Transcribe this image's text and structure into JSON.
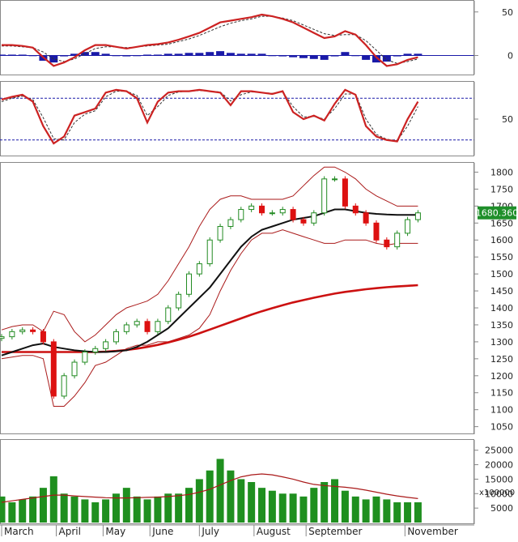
{
  "chart_data": [
    {
      "type": "line",
      "panel": "macd",
      "y_ticks": [
        "50",
        "0"
      ],
      "y_tick_values": [
        50,
        0
      ],
      "ylim": [
        -20,
        60
      ],
      "colors": {
        "line": "#cc2222",
        "signal": "#333333",
        "hist": "#1a1aa8"
      },
      "x": [
        0,
        4,
        8,
        12,
        16,
        20,
        24,
        28,
        32,
        36,
        40,
        44,
        48,
        52,
        56,
        60,
        64,
        68,
        72,
        76,
        80,
        84,
        88,
        92,
        96,
        100,
        104,
        108,
        112,
        116,
        120,
        124,
        128,
        132,
        136,
        140,
        144,
        148,
        152,
        156,
        160
      ],
      "macd": [
        12,
        12,
        11,
        9,
        -2,
        -12,
        -8,
        -2,
        6,
        12,
        12,
        10,
        8,
        10,
        12,
        13,
        15,
        18,
        22,
        26,
        32,
        38,
        40,
        42,
        44,
        47,
        45,
        42,
        38,
        32,
        26,
        20,
        22,
        28,
        24,
        12,
        -2,
        -12,
        -10,
        -5,
        -2
      ],
      "signal": [
        11,
        11,
        10,
        9,
        4,
        -4,
        -7,
        -4,
        2,
        8,
        10,
        10,
        9,
        10,
        11,
        12,
        13,
        16,
        19,
        23,
        28,
        33,
        37,
        40,
        42,
        45,
        45,
        43,
        40,
        35,
        30,
        25,
        23,
        24,
        24,
        17,
        6,
        -5,
        -9,
        -7,
        -4
      ],
      "hist": [
        1,
        1,
        1,
        0,
        -6,
        -8,
        -1,
        2,
        4,
        4,
        2,
        0,
        -1,
        0,
        1,
        1,
        2,
        2,
        3,
        3,
        4,
        5,
        3,
        2,
        2,
        2,
        0,
        -1,
        -2,
        -3,
        -4,
        -5,
        -1,
        4,
        0,
        -5,
        -8,
        -7,
        -1,
        2,
        2
      ]
    },
    {
      "type": "line",
      "panel": "stochastic",
      "y_ticks": [
        "50"
      ],
      "y_tick_values": [
        50
      ],
      "reference_levels": [
        80,
        20
      ],
      "ylim": [
        0,
        100
      ],
      "colors": {
        "k": "#cc2222",
        "d": "#333333",
        "ref": "#1a1aa8"
      },
      "x": [
        0,
        4,
        8,
        12,
        16,
        20,
        24,
        28,
        32,
        36,
        40,
        44,
        48,
        52,
        56,
        60,
        64,
        68,
        72,
        76,
        80,
        84,
        88,
        92,
        96,
        100,
        104,
        108,
        112,
        116,
        120,
        124,
        128,
        132,
        136,
        140,
        144,
        148,
        152,
        156,
        160
      ],
      "k": [
        78,
        82,
        85,
        75,
        40,
        15,
        25,
        55,
        60,
        65,
        88,
        92,
        90,
        80,
        45,
        75,
        88,
        90,
        90,
        92,
        90,
        88,
        70,
        90,
        90,
        88,
        86,
        90,
        60,
        50,
        55,
        48,
        72,
        92,
        85,
        40,
        25,
        20,
        18,
        50,
        75
      ],
      "d": [
        75,
        80,
        83,
        78,
        52,
        22,
        20,
        45,
        57,
        62,
        82,
        90,
        90,
        84,
        55,
        68,
        84,
        89,
        90,
        91,
        90,
        89,
        76,
        85,
        89,
        88,
        87,
        89,
        68,
        53,
        54,
        50,
        65,
        86,
        86,
        50,
        28,
        21,
        19,
        40,
        68
      ]
    },
    {
      "type": "candlestick",
      "panel": "price",
      "price_label": "1680.360",
      "y_ticks": [
        "1800",
        "1750",
        "1700",
        "1650",
        "1600",
        "1550",
        "1500",
        "1450",
        "1400",
        "1350",
        "1300",
        "1250",
        "1200",
        "1150",
        "1100",
        "1050"
      ],
      "y_tick_values": [
        1800,
        1750,
        1700,
        1650,
        1600,
        1550,
        1500,
        1450,
        1400,
        1350,
        1300,
        1250,
        1200,
        1150,
        1100,
        1050
      ],
      "ylim": [
        1030,
        1825
      ],
      "colors": {
        "up": "#228b22",
        "down": "#dd1111",
        "bollinger": "#aa1a1a",
        "ma_short": "#111111",
        "ma_long": "#cc1111",
        "price_label_bg": "#1f8f2a",
        "price_label_text": "#ffffff"
      },
      "x": [
        0,
        4,
        8,
        12,
        16,
        20,
        24,
        28,
        32,
        36,
        40,
        44,
        48,
        52,
        56,
        60,
        64,
        68,
        72,
        76,
        80,
        84,
        88,
        92,
        96,
        100,
        104,
        108,
        112,
        116,
        120,
        124,
        128,
        132,
        136,
        140,
        144,
        148,
        152,
        156,
        160
      ],
      "close": [
        1315,
        1330,
        1335,
        1330,
        1300,
        1140,
        1200,
        1240,
        1270,
        1280,
        1300,
        1330,
        1350,
        1360,
        1330,
        1360,
        1400,
        1440,
        1500,
        1530,
        1600,
        1640,
        1660,
        1690,
        1700,
        1680,
        1680,
        1690,
        1660,
        1650,
        1680,
        1780,
        1780,
        1700,
        1680,
        1650,
        1600,
        1580,
        1620,
        1660,
        1680
      ],
      "ma_short": [
        1260,
        1270,
        1280,
        1290,
        1295,
        1285,
        1280,
        1275,
        1272,
        1270,
        1270,
        1272,
        1275,
        1285,
        1300,
        1320,
        1340,
        1370,
        1400,
        1430,
        1460,
        1500,
        1540,
        1580,
        1610,
        1630,
        1640,
        1650,
        1660,
        1665,
        1670,
        1680,
        1690,
        1690,
        1685,
        1680,
        1677,
        1675,
        1674,
        1674,
        1674
      ],
      "ma_long": [
        1270,
        1270,
        1270,
        1270,
        1270,
        1270,
        1270,
        1270,
        1270,
        1270,
        1271,
        1273,
        1276,
        1280,
        1285,
        1291,
        1298,
        1306,
        1315,
        1325,
        1336,
        1347,
        1358,
        1369,
        1380,
        1390,
        1399,
        1408,
        1416,
        1423,
        1430,
        1436,
        1442,
        1447,
        1451,
        1455,
        1458,
        1461,
        1463,
        1465,
        1467
      ],
      "bb_upper": [
        1335,
        1345,
        1350,
        1350,
        1330,
        1390,
        1380,
        1330,
        1300,
        1320,
        1350,
        1380,
        1400,
        1410,
        1420,
        1440,
        1480,
        1530,
        1580,
        1640,
        1690,
        1720,
        1730,
        1730,
        1720,
        1720,
        1720,
        1720,
        1730,
        1760,
        1790,
        1815,
        1815,
        1800,
        1780,
        1750,
        1730,
        1715,
        1700,
        1700,
        1700
      ],
      "bb_lower": [
        1250,
        1255,
        1260,
        1260,
        1250,
        1110,
        1110,
        1140,
        1180,
        1230,
        1240,
        1260,
        1280,
        1290,
        1290,
        1300,
        1300,
        1310,
        1320,
        1340,
        1380,
        1450,
        1510,
        1560,
        1600,
        1620,
        1620,
        1630,
        1620,
        1610,
        1600,
        1590,
        1590,
        1600,
        1600,
        1600,
        1590,
        1585,
        1590,
        1590,
        1590
      ]
    },
    {
      "type": "bar",
      "panel": "volume",
      "unit_label": "x100000",
      "y_ticks": [
        "25000",
        "20000",
        "15000",
        "10000",
        "5000"
      ],
      "y_tick_values": [
        25000,
        20000,
        15000,
        10000,
        5000
      ],
      "ylim": [
        0,
        28000
      ],
      "colors": {
        "bar": "#1f8f1f",
        "avg": "#aa1a1a"
      },
      "x": [
        0,
        4,
        8,
        12,
        16,
        20,
        24,
        28,
        32,
        36,
        40,
        44,
        48,
        52,
        56,
        60,
        64,
        68,
        72,
        76,
        80,
        84,
        88,
        92,
        96,
        100,
        104,
        108,
        112,
        116,
        120,
        124,
        128,
        132,
        136,
        140,
        144,
        148,
        152,
        156,
        160
      ],
      "values": [
        9000,
        7000,
        8000,
        9000,
        12000,
        16000,
        10000,
        9000,
        8000,
        7000,
        8000,
        10000,
        12000,
        9000,
        8000,
        9000,
        10000,
        10000,
        12000,
        15000,
        18000,
        22000,
        18000,
        15000,
        14000,
        12000,
        11000,
        10000,
        10000,
        9000,
        12000,
        14000,
        15000,
        11000,
        9000,
        8000,
        9000,
        8000,
        7000,
        7000,
        7000
      ],
      "avg": [
        7000,
        7500,
        8000,
        8500,
        9000,
        9500,
        9500,
        9200,
        9000,
        8800,
        8600,
        8500,
        8500,
        8600,
        8700,
        8800,
        9000,
        9300,
        9700,
        10500,
        11500,
        13000,
        14500,
        15800,
        16500,
        16800,
        16500,
        15800,
        15000,
        14000,
        13200,
        12800,
        12500,
        12200,
        11800,
        11200,
        10500,
        9800,
        9200,
        8700,
        8300
      ]
    }
  ],
  "x_axis": {
    "labels": [
      "March",
      "April",
      "May",
      "June",
      "July",
      "August",
      "September",
      "November"
    ],
    "positions": [
      0,
      21,
      39,
      57,
      76,
      97,
      117,
      155
    ],
    "domain": [
      0,
      172
    ]
  }
}
